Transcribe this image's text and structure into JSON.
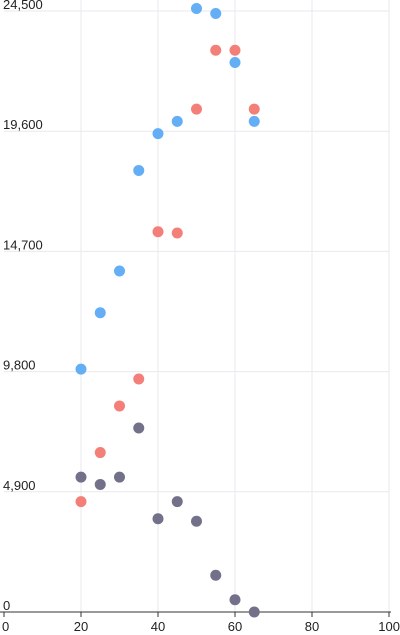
{
  "chart_data": {
    "type": "scatter",
    "title": "",
    "xlabel": "",
    "ylabel": "",
    "xlim": [
      0,
      100
    ],
    "ylim": [
      0,
      24500
    ],
    "x_ticks": [
      0,
      20,
      40,
      60,
      80,
      100
    ],
    "x_tick_labels": [
      "0",
      "20",
      "40",
      "60",
      "80",
      "100"
    ],
    "y_ticks": [
      0,
      4900,
      9800,
      14700,
      19600,
      24500
    ],
    "y_tick_labels": [
      "0",
      "4,900",
      "9,800",
      "14,700",
      "19,600",
      "24,500"
    ],
    "grid": true,
    "series": [
      {
        "color": "#63aef5",
        "points": [
          [
            20,
            9900
          ],
          [
            25,
            12200
          ],
          [
            30,
            13900
          ],
          [
            35,
            18000
          ],
          [
            40,
            19500
          ],
          [
            45,
            20000
          ],
          [
            50,
            24600
          ],
          [
            55,
            24400
          ],
          [
            60,
            22400
          ],
          [
            65,
            20000
          ]
        ]
      },
      {
        "color": "#f47f78",
        "points": [
          [
            20,
            4500
          ],
          [
            25,
            6500
          ],
          [
            30,
            8400
          ],
          [
            35,
            9500
          ],
          [
            40,
            15500
          ],
          [
            45,
            15450
          ],
          [
            50,
            20500
          ],
          [
            55,
            22900
          ],
          [
            60,
            22900
          ],
          [
            65,
            20500
          ]
        ]
      },
      {
        "color": "#73708a",
        "points": [
          [
            20,
            5500
          ],
          [
            25,
            5200
          ],
          [
            30,
            5500
          ],
          [
            35,
            7500
          ],
          [
            40,
            3800
          ],
          [
            45,
            4500
          ],
          [
            50,
            3700
          ],
          [
            55,
            1500
          ],
          [
            60,
            500
          ],
          [
            65,
            0
          ]
        ]
      }
    ]
  }
}
